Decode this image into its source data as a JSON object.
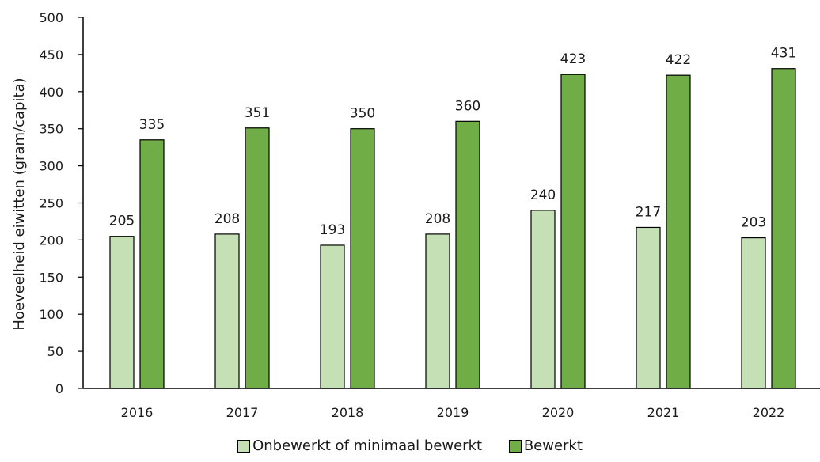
{
  "chart_data": {
    "type": "bar",
    "ylabel": "Hoeveelheid eiwitten (gram/capita)",
    "ylim": [
      0,
      500
    ],
    "yticks": [
      "0",
      "50",
      "100",
      "150",
      "200",
      "250",
      "300",
      "350",
      "400",
      "450",
      "500"
    ],
    "categories": [
      "2016",
      "2017",
      "2018",
      "2019",
      "2020",
      "2021",
      "2022"
    ],
    "series": [
      {
        "name": "Onbewerkt of minimaal bewerkt",
        "color": "#c5e0b4",
        "values": [
          205,
          208,
          193,
          208,
          240,
          217,
          203
        ]
      },
      {
        "name": "Bewerkt",
        "color": "#70ad47",
        "values": [
          335,
          351,
          350,
          360,
          423,
          422,
          431
        ]
      }
    ],
    "grid": false,
    "legend_position": "bottom",
    "data_labels": true
  }
}
